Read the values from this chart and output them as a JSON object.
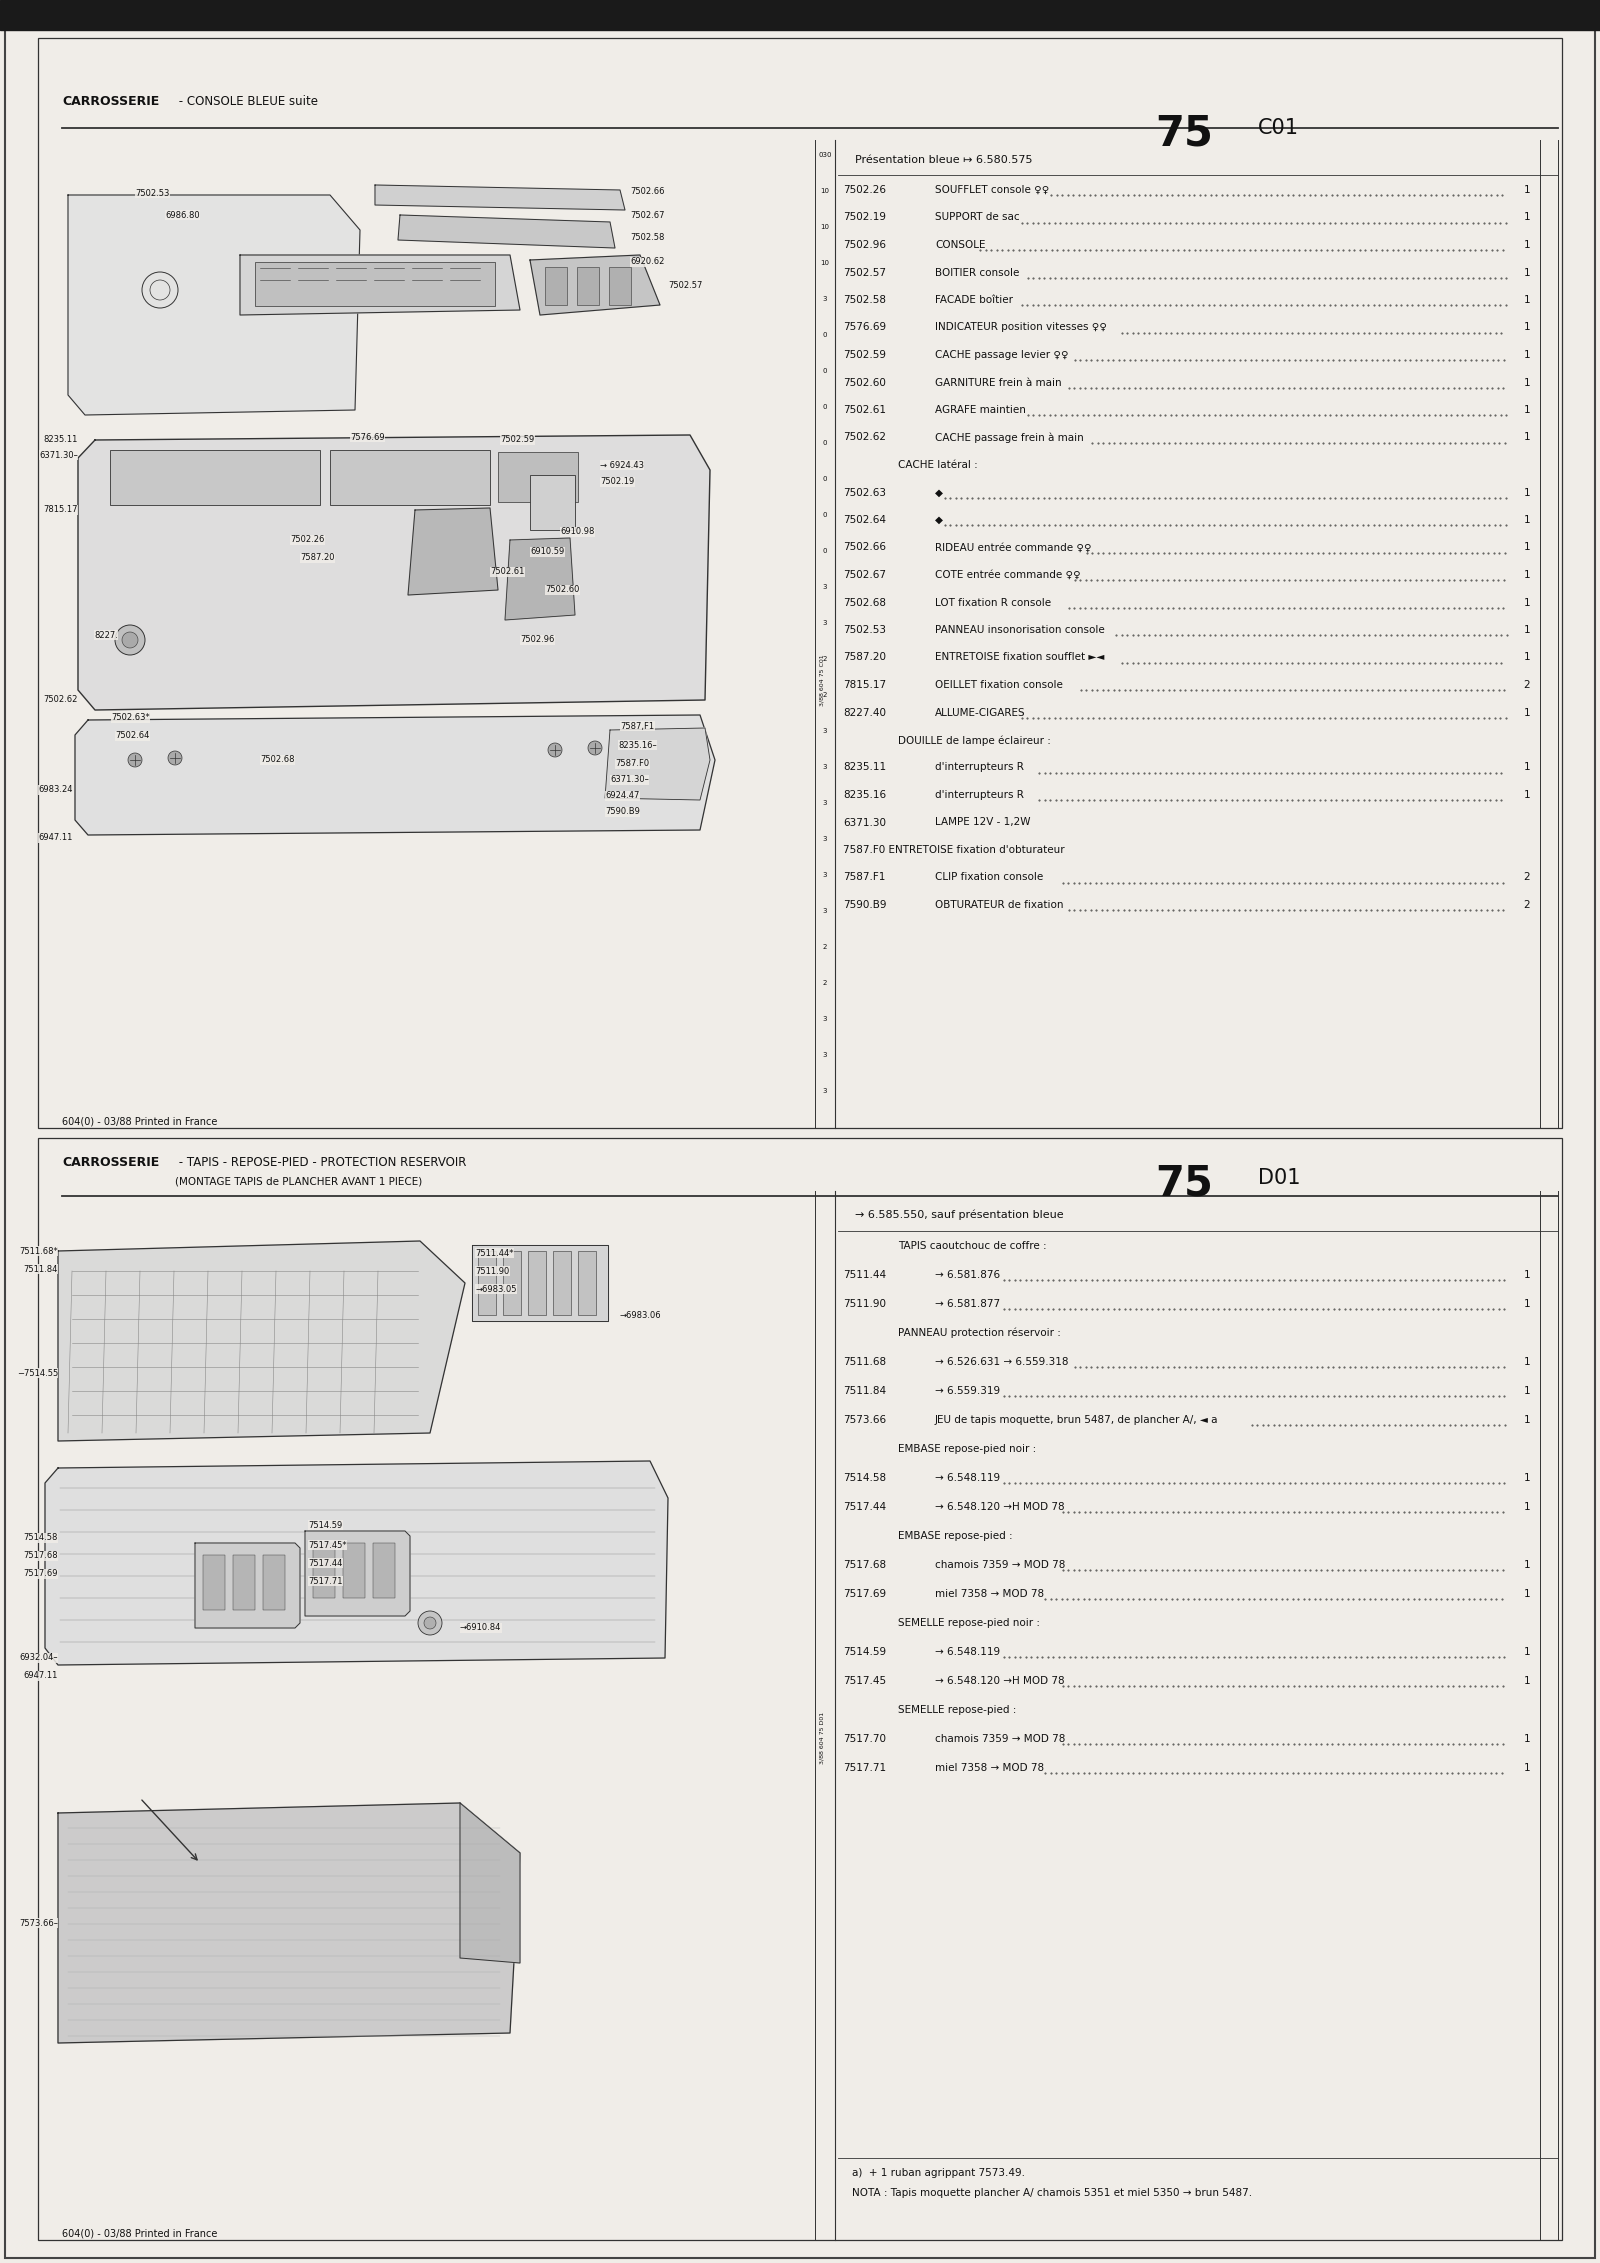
{
  "page_bg": "#f0ede8",
  "section1": {
    "title_bold": "CARROSSERIE",
    "title_normal": " - CONSOLE BLEUE suite",
    "page_num": "75",
    "page_code": "C01",
    "presentation_line": "Présentation bleue ↦ 6.580.575",
    "parts_list": [
      {
        "num": "7502.26",
        "desc": "SOUFFLET console ♀♀",
        "qty": "1"
      },
      {
        "num": "7502.19",
        "desc": "SUPPORT de sac",
        "qty": "1"
      },
      {
        "num": "7502.96",
        "desc": "CONSOLE",
        "qty": "1"
      },
      {
        "num": "7502.57",
        "desc": "BOITIER console",
        "qty": "1"
      },
      {
        "num": "7502.58",
        "desc": "FACADE boîtier",
        "qty": "1"
      },
      {
        "num": "7576.69",
        "desc": "INDICATEUR position vitesses ♀♀",
        "qty": "1"
      },
      {
        "num": "7502.59",
        "desc": "CACHE passage levier ♀♀",
        "qty": "1"
      },
      {
        "num": "7502.60",
        "desc": "GARNITURE frein à main",
        "qty": "1"
      },
      {
        "num": "7502.61",
        "desc": "AGRAFE maintien",
        "qty": "1"
      },
      {
        "num": "7502.62",
        "desc": "CACHE passage frein à main",
        "qty": "1"
      },
      {
        "num": "",
        "desc": "CACHE latéral :",
        "qty": ""
      },
      {
        "num": "7502.63",
        "desc": "◆",
        "qty": "1"
      },
      {
        "num": "7502.64",
        "desc": "◆",
        "qty": "1"
      },
      {
        "num": "7502.66",
        "desc": "RIDEAU entrée commande ♀♀",
        "qty": "1"
      },
      {
        "num": "7502.67",
        "desc": "COTE entrée commande ♀♀",
        "qty": "1"
      },
      {
        "num": "7502.68",
        "desc": "LOT fixation R console",
        "qty": "1"
      },
      {
        "num": "7502.53",
        "desc": "PANNEAU insonorisation console",
        "qty": "1"
      },
      {
        "num": "7587.20",
        "desc": "ENTRETOISE fixation soufflet ►◄",
        "qty": "1"
      },
      {
        "num": "7815.17",
        "desc": "OEILLET fixation console",
        "qty": "2"
      },
      {
        "num": "8227.40",
        "desc": "ALLUME-CIGARES",
        "qty": "1"
      },
      {
        "num": "",
        "desc": "DOUILLE de lampe éclaireur :",
        "qty": ""
      },
      {
        "num": "8235.11",
        "desc": "d'interrupteurs R",
        "qty": "1"
      },
      {
        "num": "8235.16",
        "desc": "d'interrupteurs R",
        "qty": "1"
      },
      {
        "num": "6371.30",
        "desc": "LAMPE 12V - 1,2W",
        "qty": ""
      },
      {
        "num": "",
        "desc": "7587.F0 ENTRETOISE fixation d'obturateur",
        "qty": ""
      },
      {
        "num": "7587.F1",
        "desc": "CLIP fixation console",
        "qty": "2"
      },
      {
        "num": "7590.B9",
        "desc": "OBTURATEUR de fixation",
        "qty": "2"
      }
    ],
    "footer": "604(0) - 03/88 Printed in France"
  },
  "section2": {
    "title_bold": "CARROSSERIE",
    "title_normal": " - TAPIS - REPOSE-PIED - PROTECTION RESERVOIR",
    "title_sub": "(MONTAGE TAPIS de PLANCHER AVANT 1 PIECE)",
    "page_num": "75",
    "page_code": "D01",
    "nota_header": "→ 6.585.550, sauf présentation bleue",
    "parts_list": [
      {
        "num": "",
        "desc": "TAPIS caoutchouc de coffre :",
        "qty": ""
      },
      {
        "num": "7511.44",
        "desc": "→ 6.581.876",
        "qty": "1"
      },
      {
        "num": "7511.90",
        "desc": "→ 6.581.877",
        "qty": "1"
      },
      {
        "num": "",
        "desc": "PANNEAU protection réservoir :",
        "qty": ""
      },
      {
        "num": "7511.68",
        "desc": "→ 6.526.631 → 6.559.318",
        "qty": "1"
      },
      {
        "num": "7511.84",
        "desc": "→ 6.559.319",
        "qty": "1"
      },
      {
        "num": "7573.66",
        "desc": "JEU de tapis moquette, brun 5487, de plancher A/, ◄ a",
        "qty": "1"
      },
      {
        "num": "",
        "desc": "EMBASE repose-pied noir :",
        "qty": ""
      },
      {
        "num": "7514.58",
        "desc": "→ 6.548.119",
        "qty": "1"
      },
      {
        "num": "7517.44",
        "desc": "→ 6.548.120 →H MOD 78",
        "qty": "1"
      },
      {
        "num": "",
        "desc": "EMBASE repose-pied :",
        "qty": ""
      },
      {
        "num": "7517.68",
        "desc": "chamois 7359 → MOD 78",
        "qty": "1"
      },
      {
        "num": "7517.69",
        "desc": "miel 7358 → MOD 78",
        "qty": "1"
      },
      {
        "num": "",
        "desc": "SEMELLE repose-pied noir :",
        "qty": ""
      },
      {
        "num": "7514.59",
        "desc": "→ 6.548.119",
        "qty": "1"
      },
      {
        "num": "7517.45",
        "desc": "→ 6.548.120 →H MOD 78",
        "qty": "1"
      },
      {
        "num": "",
        "desc": "SEMELLE repose-pied :",
        "qty": ""
      },
      {
        "num": "7517.70",
        "desc": "chamois 7359 → MOD 78",
        "qty": "1"
      },
      {
        "num": "7517.71",
        "desc": "miel 7358 → MOD 78",
        "qty": "1"
      }
    ],
    "footer": "604(0) - 03/88 Printed in France",
    "nota_a": "a)  + 1 ruban agrippant 7573.49.",
    "nota_b": "NOTA : Tapis moquette plancher A/ chamois 5351 et miel 5350 → brun 5487."
  },
  "text_color": "#111111",
  "line_color": "#333333"
}
